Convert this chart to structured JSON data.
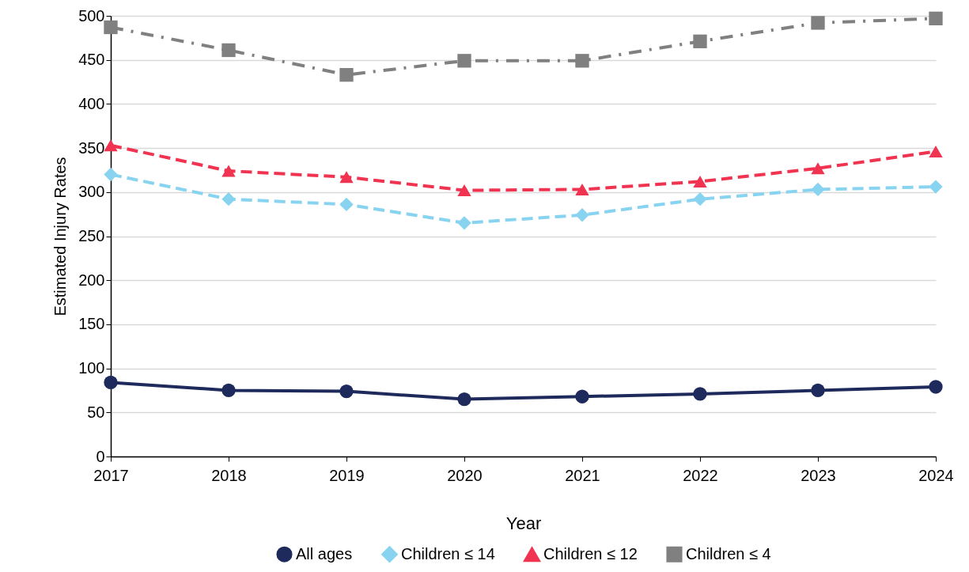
{
  "chart_data": {
    "type": "line",
    "xlabel": "Year",
    "ylabel": "Estimated Injury Rates",
    "x": [
      2017,
      2018,
      2019,
      2020,
      2021,
      2022,
      2023,
      2024
    ],
    "xlim": [
      2017,
      2024
    ],
    "xticks": [
      2017,
      2018,
      2019,
      2020,
      2021,
      2022,
      2023,
      2024
    ],
    "ylim": [
      0,
      500
    ],
    "yticks": [
      0,
      50,
      100,
      150,
      200,
      250,
      300,
      350,
      400,
      450,
      500
    ],
    "grid": "y",
    "legend": "bottom",
    "series": [
      {
        "name": "All ages",
        "color": "#1f2a5c",
        "marker": "circle",
        "line_style": "solid",
        "values": [
          84,
          75,
          74,
          65,
          68,
          71,
          75,
          79
        ]
      },
      {
        "name": "Children ≤ 14",
        "color": "#87d3f0",
        "marker": "diamond",
        "line_style": "dashed",
        "values": [
          320,
          292,
          286,
          265,
          274,
          292,
          303,
          306
        ]
      },
      {
        "name": "Children ≤ 12",
        "color": "#f03350",
        "marker": "triangle",
        "line_style": "dashed",
        "values": [
          353,
          324,
          317,
          302,
          303,
          312,
          327,
          346
        ]
      },
      {
        "name": "Children ≤ 4",
        "color": "#808080",
        "marker": "square",
        "line_style": "dashdot",
        "values": [
          487,
          461,
          433,
          449,
          449,
          471,
          492,
          497
        ]
      }
    ]
  }
}
